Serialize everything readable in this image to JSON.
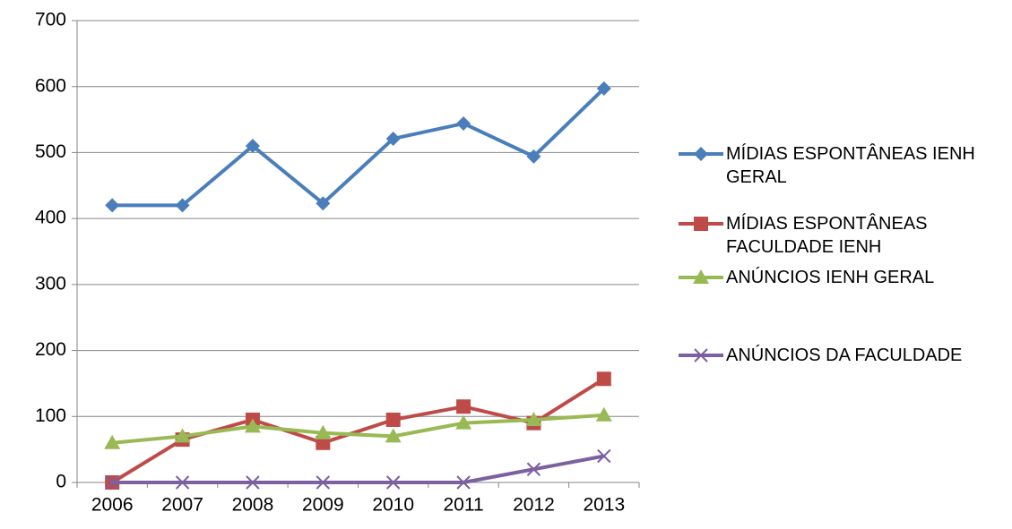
{
  "chart_data": {
    "type": "line",
    "categories": [
      "2006",
      "2007",
      "2008",
      "2009",
      "2010",
      "2011",
      "2012",
      "2013"
    ],
    "series": [
      {
        "name": "MÍDIAS ESPONTÂNEAS IENH GERAL",
        "color": "#4a7ebb",
        "marker": "diamond",
        "values": [
          420,
          420,
          510,
          423,
          521,
          544,
          494,
          597
        ]
      },
      {
        "name": "MÍDIAS ESPONTÂNEAS FACULDADE IENH",
        "color": "#be4b48",
        "marker": "square",
        "values": [
          0,
          65,
          95,
          60,
          95,
          115,
          90,
          157
        ]
      },
      {
        "name": "ANÚNCIOS IENH GERAL",
        "color": "#98b954",
        "marker": "triangle",
        "values": [
          60,
          70,
          85,
          75,
          70,
          90,
          95,
          102
        ]
      },
      {
        "name": "ANÚNCIOS DA FACULDADE",
        "color": "#7d60a0",
        "marker": "x",
        "values": [
          0,
          0,
          0,
          0,
          0,
          0,
          20,
          40
        ]
      }
    ],
    "ylim": [
      0,
      700
    ],
    "yticks": [
      0,
      100,
      200,
      300,
      400,
      500,
      600,
      700
    ],
    "grid": true,
    "legend": "right"
  }
}
